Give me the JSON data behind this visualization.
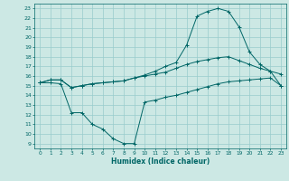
{
  "xlabel": "Humidex (Indice chaleur)",
  "bg_color": "#cce8e4",
  "line_color": "#006666",
  "grid_color": "#99cccc",
  "xlim": [
    -0.5,
    23.5
  ],
  "ylim": [
    8.5,
    23.5
  ],
  "xticks": [
    0,
    1,
    2,
    3,
    4,
    5,
    6,
    7,
    8,
    9,
    10,
    11,
    12,
    13,
    14,
    15,
    16,
    17,
    18,
    19,
    20,
    21,
    22,
    23
  ],
  "yticks": [
    9,
    10,
    11,
    12,
    13,
    14,
    15,
    16,
    17,
    18,
    19,
    20,
    21,
    22,
    23
  ],
  "line1_x": [
    0,
    1,
    2,
    3,
    4,
    5,
    6,
    7,
    8,
    9,
    10,
    11,
    12,
    13,
    14,
    15,
    16,
    17,
    18,
    19,
    20,
    21,
    22,
    23
  ],
  "line1_y": [
    15.3,
    15.6,
    15.6,
    14.8,
    15.0,
    15.2,
    15.3,
    15.4,
    15.5,
    15.8,
    16.0,
    16.2,
    16.4,
    16.8,
    17.2,
    17.5,
    17.7,
    17.9,
    18.0,
    17.6,
    17.2,
    16.8,
    16.5,
    16.2
  ],
  "line2_x": [
    0,
    1,
    2,
    3,
    4,
    5,
    6,
    7,
    8,
    9,
    10,
    11,
    12,
    13,
    14,
    15,
    16,
    17,
    18,
    19,
    20,
    21,
    22,
    23
  ],
  "line2_y": [
    15.3,
    15.6,
    15.6,
    14.8,
    15.0,
    15.2,
    15.3,
    15.4,
    15.5,
    15.8,
    16.1,
    16.5,
    17.0,
    17.4,
    19.2,
    22.2,
    22.7,
    23.0,
    22.7,
    21.1,
    18.5,
    17.2,
    16.5,
    15.0
  ],
  "line3_x": [
    0,
    1,
    2,
    3,
    4,
    5,
    6,
    7,
    8,
    9,
    10,
    11,
    12,
    13,
    14,
    15,
    16,
    17,
    18,
    19,
    20,
    21,
    22,
    23
  ],
  "line3_y": [
    15.3,
    15.3,
    15.2,
    12.2,
    12.2,
    11.0,
    10.5,
    9.5,
    9.0,
    9.0,
    13.3,
    13.5,
    13.8,
    14.0,
    14.3,
    14.6,
    14.9,
    15.2,
    15.4,
    15.5,
    15.6,
    15.7,
    15.8,
    15.0
  ]
}
